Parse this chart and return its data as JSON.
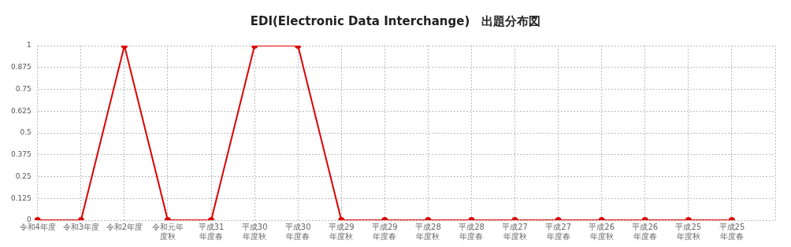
{
  "chart_data": {
    "type": "line",
    "title": "EDI(Electronic Data Interchange)　出題分布図",
    "categories": [
      "令和4年度",
      "令和3年度",
      "令和2年度",
      "令和元年度秋",
      "平成31年度春",
      "平成30年度秋",
      "平成30年度春",
      "平成29年度秋",
      "平成29年度春",
      "平成28年度秋",
      "平成28年度春",
      "平成27年度秋",
      "平成27年度春",
      "平成26年度秋",
      "平成26年度春",
      "平成25年度秋",
      "平成25年度春",
      null
    ],
    "series": [
      {
        "color": "#dd0000",
        "values": [
          0,
          0,
          1,
          0,
          0,
          1,
          1,
          0,
          0,
          0,
          0,
          0,
          0,
          0,
          0,
          0,
          0,
          null
        ]
      }
    ],
    "ylim": [
      0,
      1
    ],
    "yticks": [
      0,
      0.125,
      0.25,
      0.375,
      0.5,
      0.625,
      0.75,
      0.875,
      1
    ],
    "grid": true,
    "legend": false,
    "marker": "circle",
    "line_style": "solid"
  }
}
